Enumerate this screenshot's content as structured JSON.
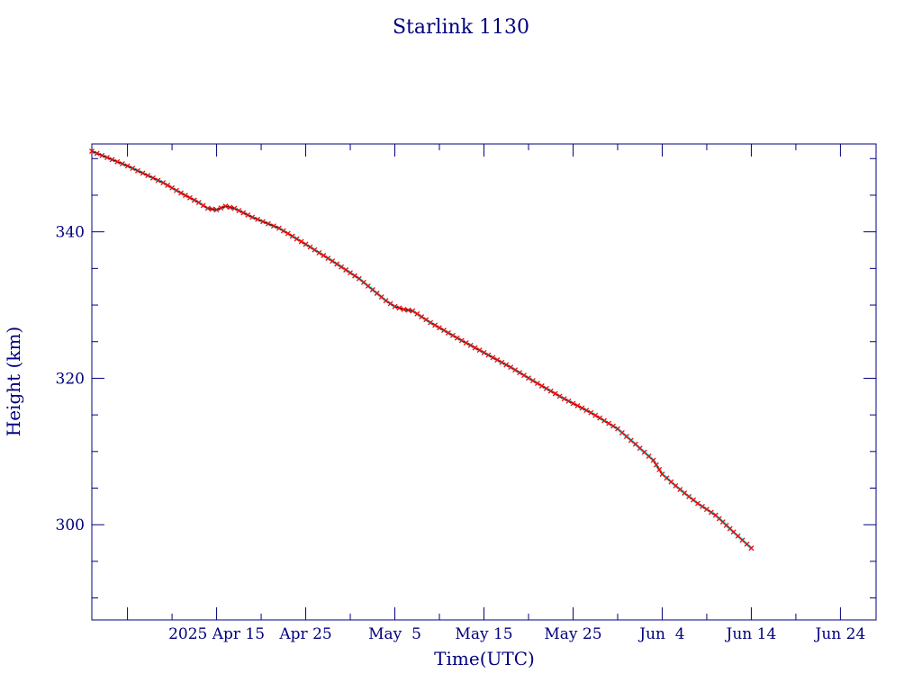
{
  "chart_data": {
    "type": "line",
    "title": "Starlink 1130",
    "xlabel": "Time(UTC)",
    "ylabel": "Height (km)",
    "x_tick_labels": [
      "2025 Apr 15",
      "Apr 25",
      "May  5",
      "May 15",
      "May 25",
      "Jun  4",
      "Jun 14",
      "Jun 24"
    ],
    "y_tick_labels": [
      "300",
      "320",
      "340"
    ],
    "x_range": [
      "2025-04-01",
      "2025-06-28"
    ],
    "ylim": [
      287,
      352
    ],
    "grid": false,
    "colors": {
      "frame": "#00007f",
      "text": "#00007f",
      "line": "#000000",
      "marker": "#ff0000",
      "highlight": "#00e5e5"
    },
    "series": [
      {
        "points": [
          [
            "2025-04-01",
            351.0
          ],
          [
            "2025-04-05",
            349.0
          ],
          [
            "2025-04-09",
            346.7
          ],
          [
            "2025-04-11",
            345.3
          ],
          [
            "2025-04-13",
            344.0
          ],
          [
            "2025-04-14",
            343.2
          ],
          [
            "2025-04-15",
            343.0
          ],
          [
            "2025-04-16",
            343.5
          ],
          [
            "2025-04-17",
            343.2
          ],
          [
            "2025-04-19",
            342.0
          ],
          [
            "2025-04-22",
            340.5
          ],
          [
            "2025-04-25",
            338.3
          ],
          [
            "2025-04-28",
            336.0
          ],
          [
            "2025-05-01",
            333.6
          ],
          [
            "2025-05-04",
            330.6
          ],
          [
            "2025-05-05",
            329.8
          ],
          [
            "2025-05-06",
            329.4
          ],
          [
            "2025-05-07",
            329.2
          ],
          [
            "2025-05-09",
            327.6
          ],
          [
            "2025-05-12",
            325.5
          ],
          [
            "2025-05-15",
            323.5
          ],
          [
            "2025-05-18",
            321.5
          ],
          [
            "2025-05-21",
            319.3
          ],
          [
            "2025-05-24",
            317.2
          ],
          [
            "2025-05-27",
            315.3
          ],
          [
            "2025-05-30",
            313.1
          ],
          [
            "2025-06-01",
            311.0
          ],
          [
            "2025-06-03",
            308.8
          ],
          [
            "2025-06-04",
            306.9
          ],
          [
            "2025-06-06",
            304.8
          ],
          [
            "2025-06-08",
            302.9
          ],
          [
            "2025-06-10",
            301.3
          ],
          [
            "2025-06-12",
            299.0
          ],
          [
            "2025-06-14",
            296.8
          ]
        ]
      }
    ]
  }
}
